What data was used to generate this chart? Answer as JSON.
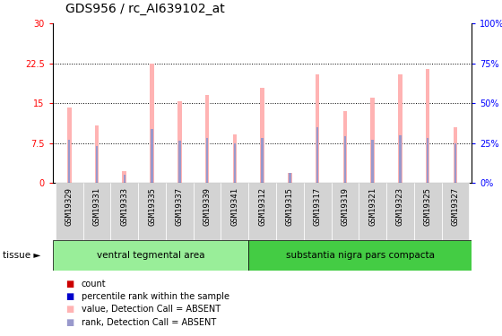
{
  "title": "GDS956 / rc_AI639102_at",
  "samples": [
    "GSM19329",
    "GSM19331",
    "GSM19333",
    "GSM19335",
    "GSM19337",
    "GSM19339",
    "GSM19341",
    "GSM19312",
    "GSM19315",
    "GSM19317",
    "GSM19319",
    "GSM19321",
    "GSM19323",
    "GSM19325",
    "GSM19327"
  ],
  "pink_bar_heights": [
    14.2,
    10.8,
    2.3,
    22.5,
    15.4,
    16.5,
    9.2,
    18.0,
    2.0,
    20.5,
    13.5,
    16.0,
    20.5,
    21.5,
    10.5
  ],
  "blue_bar_heights": [
    8.2,
    7.0,
    1.5,
    10.2,
    8.0,
    8.5,
    7.5,
    8.5,
    2.0,
    10.5,
    8.8,
    8.2,
    9.0,
    8.5,
    7.5
  ],
  "pink_color": "#FFB3B3",
  "blue_color": "#9999CC",
  "red_color": "#CC0000",
  "blue_dark": "#0000CC",
  "ylim_left": [
    0,
    30
  ],
  "ylim_right": [
    0,
    100
  ],
  "yticks_left": [
    0,
    7.5,
    15,
    22.5,
    30
  ],
  "yticks_right": [
    0,
    25,
    50,
    75,
    100
  ],
  "ytick_labels_left": [
    "0",
    "7.5",
    "15",
    "22.5",
    "30"
  ],
  "ytick_labels_right": [
    "0%",
    "25%",
    "50%",
    "75%",
    "100%"
  ],
  "group1_label": "ventral tegmental area",
  "group2_label": "substantia nigra pars compacta",
  "group1_count": 7,
  "group2_count": 8,
  "tissue_label": "tissue ►",
  "group1_color": "#99EE99",
  "group2_color": "#44CC44",
  "xticklabel_bg": "#CCCCCC",
  "legend_labels": [
    "count",
    "percentile rank within the sample",
    "value, Detection Call = ABSENT",
    "rank, Detection Call = ABSENT"
  ],
  "legend_colors": [
    "#CC0000",
    "#0000CC",
    "#FFB3B3",
    "#9999CC"
  ],
  "pink_bar_width": 0.15,
  "blue_bar_width": 0.08
}
